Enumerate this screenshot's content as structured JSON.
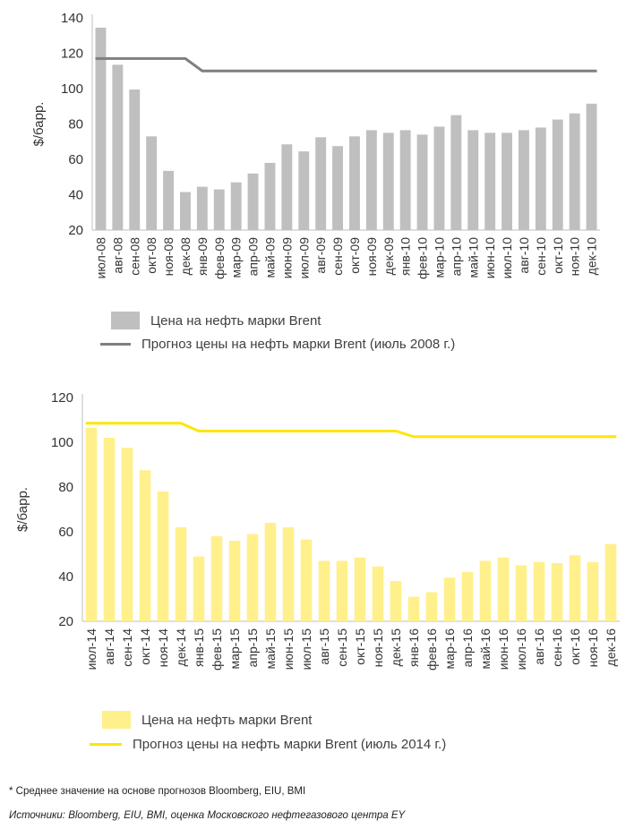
{
  "chart_data": [
    {
      "type": "bar",
      "ylabel": "$/барр.",
      "ylim": [
        20,
        140
      ],
      "yticks": [
        20,
        40,
        60,
        80,
        100,
        120,
        140
      ],
      "categories": [
        "июл-08",
        "авг-08",
        "сен-08",
        "окт-08",
        "ноя-08",
        "дек-08",
        "янв-09",
        "фев-09",
        "мар-09",
        "апр-09",
        "май-09",
        "июн-09",
        "июл-09",
        "авг-09",
        "сен-09",
        "окт-09",
        "ноя-09",
        "дек-09",
        "янв-10",
        "фев-10",
        "мар-10",
        "апр-10",
        "май-10",
        "июн-10",
        "июл-10",
        "авг-10",
        "сен-10",
        "окт-10",
        "ноя-10",
        "дек-10"
      ],
      "series": [
        {
          "name": "Цена на нефть марки Brent",
          "kind": "bar",
          "color": "#bfbfbf",
          "values": [
            134.5,
            113.5,
            99.5,
            73,
            53.5,
            41.5,
            44.5,
            43,
            47,
            52,
            58,
            68.5,
            64.5,
            72.5,
            67.5,
            73,
            76.5,
            75,
            76.5,
            74,
            78.5,
            85,
            76.5,
            75,
            75,
            76.5,
            78,
            82.5,
            86,
            91.5
          ]
        },
        {
          "name": "Прогноз цены на нефть марки Brent (июль 2008 г.)",
          "kind": "line",
          "color": "#7f7f7f",
          "values": [
            117,
            117,
            117,
            117,
            117,
            117,
            110,
            110,
            110,
            110,
            110,
            110,
            110,
            110,
            110,
            110,
            110,
            110,
            110,
            110,
            110,
            110,
            110,
            110,
            110,
            110,
            110,
            110,
            110,
            110
          ]
        }
      ],
      "legend": {
        "bar_label": "Цена на нефть марки Brent",
        "line_label": "Прогноз цены на нефть марки Brent (июль 2008 г.)"
      }
    },
    {
      "type": "bar",
      "ylabel": "$/барр.",
      "ylim": [
        20,
        120
      ],
      "yticks": [
        20,
        40,
        60,
        80,
        100,
        120
      ],
      "categories": [
        "июл-14",
        "авг-14",
        "сен-14",
        "окт-14",
        "ноя-14",
        "дек-14",
        "янв-15",
        "фев-15",
        "мар-15",
        "апр-15",
        "май-15",
        "июн-15",
        "июл-15",
        "авг-15",
        "сен-15",
        "окт-15",
        "ноя-15",
        "дек-15",
        "янв-16",
        "фев-16",
        "мар-16",
        "апр-16",
        "май-16",
        "июн-16",
        "июл-16",
        "авг-16",
        "сен-16",
        "окт-16",
        "ноя-16",
        "дек-16"
      ],
      "series": [
        {
          "name": "Цена на нефть марки Brent",
          "kind": "bar",
          "color": "#fff08c",
          "values": [
            106.5,
            102,
            97.5,
            87.5,
            78,
            62,
            49,
            58,
            56,
            59,
            64,
            62,
            56.5,
            47,
            47,
            48.5,
            44.5,
            38,
            31,
            33,
            39.5,
            42,
            47,
            48.5,
            45,
            46.5,
            46,
            49.5,
            46.5,
            54.5
          ]
        },
        {
          "name": "Прогноз цены на нефть марки Brent (июль 2014 г.)",
          "kind": "line",
          "color": "#ffe600",
          "values": [
            108.5,
            108.5,
            108.5,
            108.5,
            108.5,
            108.5,
            105,
            105,
            105,
            105,
            105,
            105,
            105,
            105,
            105,
            105,
            105,
            105,
            102.5,
            102.5,
            102.5,
            102.5,
            102.5,
            102.5,
            102.5,
            102.5,
            102.5,
            102.5,
            102.5,
            102.5
          ]
        }
      ],
      "legend": {
        "bar_label": "Цена на нефть марки Brent",
        "line_label": "Прогноз цены на нефть марки Brent (июль 2014 г.)"
      }
    }
  ],
  "footnotes": {
    "note": "* Среднее значение на основе прогнозов Bloomberg, EIU, BMI",
    "sources": "Источники: Bloomberg, EIU, BMI, оценка Московского нефтегазового центра EY"
  }
}
